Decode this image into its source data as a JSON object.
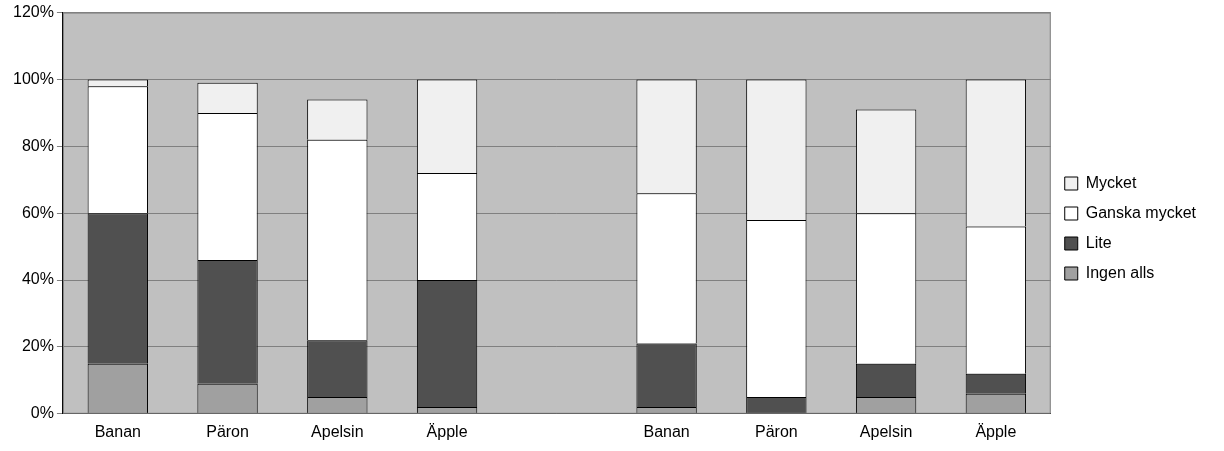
{
  "chart_data": {
    "type": "bar",
    "stacked": true,
    "grid": true,
    "legend": "right",
    "categories": [
      "Banan",
      "Päron",
      "Apelsin",
      "Äpple",
      null,
      "Banan",
      "Päron",
      "Apelsin",
      "Äpple"
    ],
    "series": [
      {
        "name": "Ingen alls",
        "color": "#a0a0a0",
        "values": [
          15,
          9,
          5,
          2,
          null,
          2,
          0,
          5,
          6
        ]
      },
      {
        "name": "Lite",
        "color": "#505050",
        "values": [
          45,
          37,
          17,
          38,
          null,
          19,
          5,
          10,
          6
        ]
      },
      {
        "name": "Ganska mycket",
        "color": "#ffffff",
        "values": [
          38,
          44,
          60,
          32,
          null,
          45,
          53,
          45,
          44
        ]
      },
      {
        "name": "Mycket",
        "color": "#f0f0f0",
        "values": [
          2,
          9,
          12,
          28,
          null,
          34,
          42,
          31,
          44
        ]
      }
    ],
    "ylim": [
      0,
      120
    ],
    "yticks": [
      {
        "value": 0,
        "label": "0%"
      },
      {
        "value": 20,
        "label": "20%"
      },
      {
        "value": 40,
        "label": "40%"
      },
      {
        "value": 60,
        "label": "60%"
      },
      {
        "value": 80,
        "label": "80%"
      },
      {
        "value": 100,
        "label": "100%"
      },
      {
        "value": 120,
        "label": "120%"
      }
    ]
  }
}
